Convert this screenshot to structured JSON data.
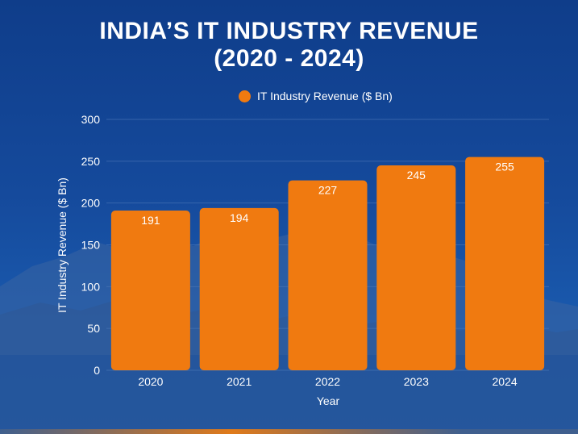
{
  "colors": {
    "bar": "#f07a10",
    "text": "#ffffff",
    "grid": "#4d78b8",
    "background": "#154a9c"
  },
  "chart_data": {
    "type": "bar",
    "title_line1": "INDIA’S IT INDUSTRY REVENUE",
    "title_line2": "(2020 - 2024)",
    "xlabel": "Year",
    "ylabel": "IT Industry Revenue ($ Bn)",
    "legend": [
      "IT Industry Revenue ($ Bn)"
    ],
    "legend_position": "top-center",
    "categories": [
      "2020",
      "2021",
      "2022",
      "2023",
      "2024"
    ],
    "series": [
      {
        "name": "IT Industry Revenue ($ Bn)",
        "values": [
          191,
          194,
          227,
          245,
          255
        ]
      }
    ],
    "ylim": [
      0,
      300
    ],
    "yticks": [
      0,
      50,
      100,
      150,
      200,
      250,
      300
    ],
    "grid": true
  }
}
